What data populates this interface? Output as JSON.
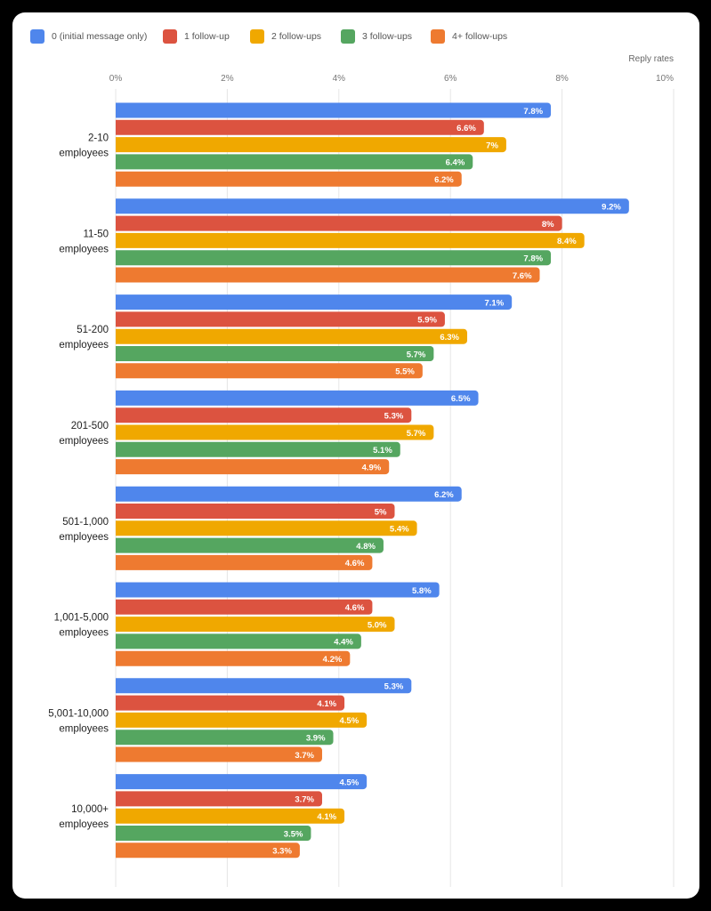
{
  "chart_data": {
    "type": "bar",
    "orientation": "horizontal",
    "xlabel": "Reply rates",
    "xlim": [
      0,
      10
    ],
    "x_ticks": [
      "0%",
      "2%",
      "4%",
      "6%",
      "8%",
      "10%"
    ],
    "grid": true,
    "legend_placement": "top-left",
    "categories": [
      [
        "2-10",
        "employees"
      ],
      [
        "11-50",
        "employees"
      ],
      [
        "51-200",
        "employees"
      ],
      [
        "201-500",
        "employees"
      ],
      [
        "501-1,000",
        "employees"
      ],
      [
        "1,001-5,000",
        "employees"
      ],
      [
        "5,001-10,000",
        "employees"
      ],
      [
        "10,000+",
        "employees"
      ]
    ],
    "series": [
      {
        "name": "0 (initial message only)",
        "color": "#4f86ec",
        "values": [
          7.8,
          9.2,
          7.1,
          6.5,
          6.2,
          5.8,
          5.3,
          4.5
        ],
        "labels": [
          "7.8%",
          "9.2%",
          "7.1%",
          "6.5%",
          "6.2%",
          "5.8%",
          "5.3%",
          "4.5%"
        ]
      },
      {
        "name": "1 follow-up",
        "color": "#dc5340",
        "values": [
          6.6,
          8,
          5.9,
          5.3,
          5,
          4.6,
          4.1,
          3.7
        ],
        "labels": [
          "6.6%",
          "8%",
          "5.9%",
          "5.3%",
          "5%",
          "4.6%",
          "4.1%",
          "3.7%"
        ]
      },
      {
        "name": "2 follow-ups",
        "color": "#f0a800",
        "values": [
          7,
          8.4,
          6.3,
          5.7,
          5.4,
          5.0,
          4.5,
          4.1
        ],
        "labels": [
          "7%",
          "8.4%",
          "6.3%",
          "5.7%",
          "5.4%",
          "5.0%",
          "4.5%",
          "4.1%"
        ]
      },
      {
        "name": "3 follow-ups",
        "color": "#55a660",
        "values": [
          6.4,
          7.8,
          5.7,
          5.1,
          4.8,
          4.4,
          3.9,
          3.5
        ],
        "labels": [
          "6.4%",
          "7.8%",
          "5.7%",
          "5.1%",
          "4.8%",
          "4.4%",
          "3.9%",
          "3.5%"
        ]
      },
      {
        "name": "4+ follow-ups",
        "color": "#ee7a30",
        "values": [
          6.2,
          7.6,
          5.5,
          4.9,
          4.6,
          4.2,
          3.7,
          3.3
        ],
        "labels": [
          "6.2%",
          "7.6%",
          "5.5%",
          "4.9%",
          "4.6%",
          "4.2%",
          "3.7%",
          "3.3%"
        ]
      }
    ]
  }
}
